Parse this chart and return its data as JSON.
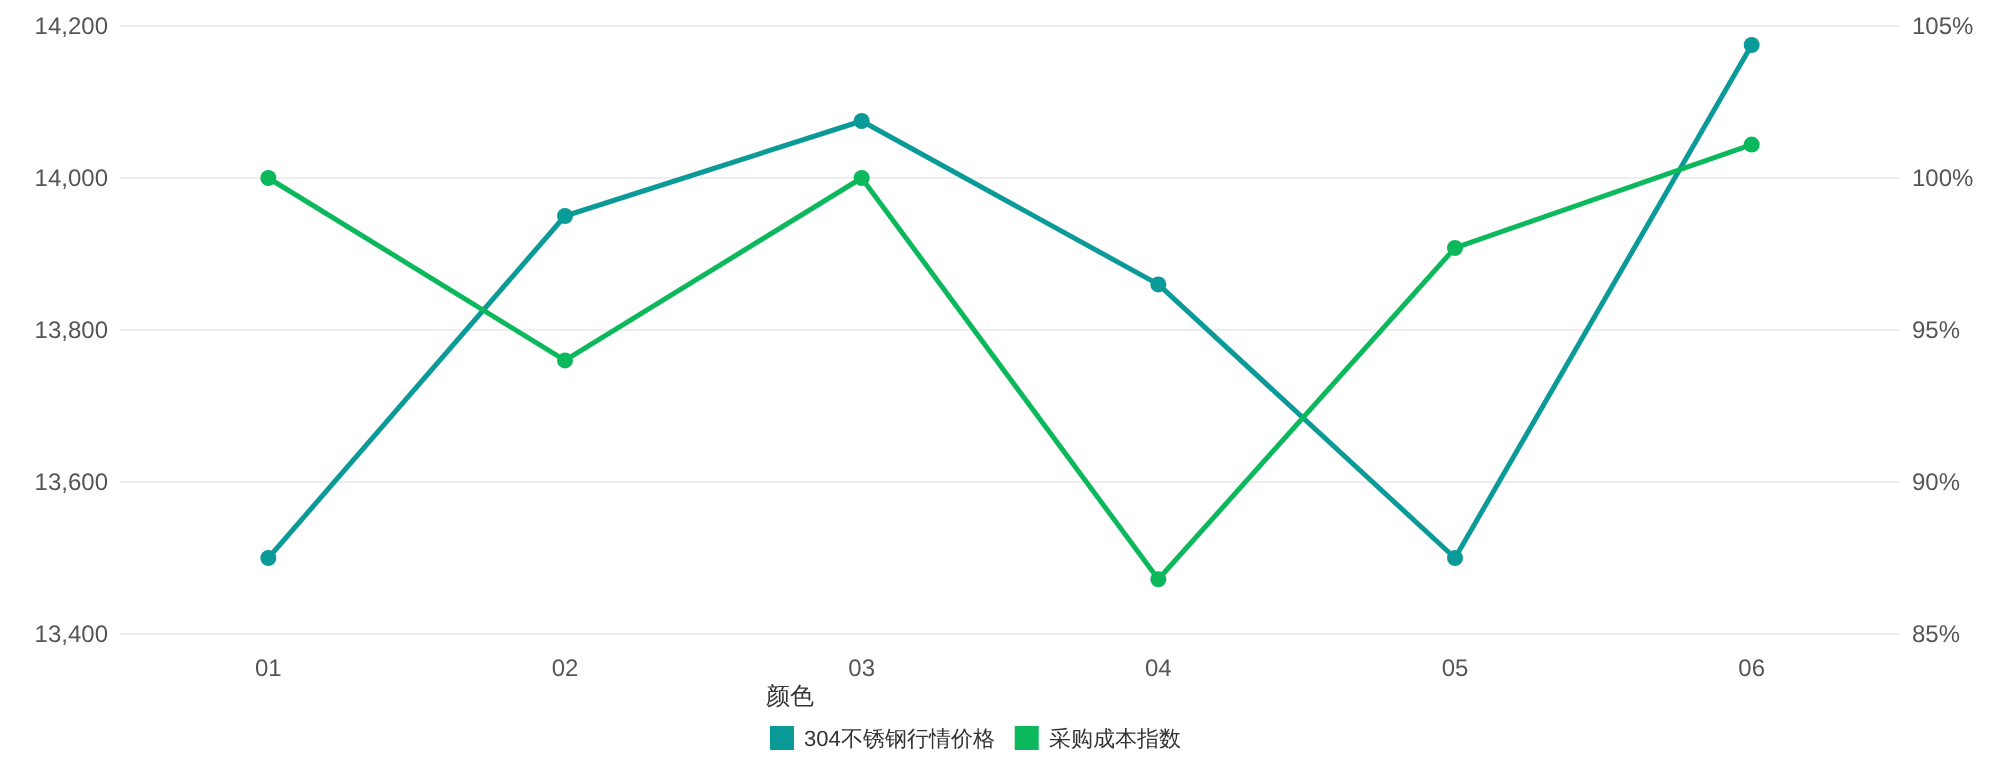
{
  "chart_data": {
    "type": "line",
    "categories": [
      "01",
      "02",
      "03",
      "04",
      "05",
      "06"
    ],
    "series": [
      {
        "name": "304不锈钢行情价格",
        "color": "#0a9a98",
        "values": [
          13500,
          13950,
          14075,
          13860,
          13500,
          14175
        ]
      },
      {
        "name": "采购成本指数",
        "color": "#0cb85c",
        "values": [
          100,
          94,
          100,
          86.8,
          97.7,
          101.1
        ],
        "axis": "y2"
      }
    ],
    "ylim": [
      13400,
      14200
    ],
    "yticks": [
      {
        "value": 13400,
        "label": "13,400"
      },
      {
        "value": 13600,
        "label": "13,600"
      },
      {
        "value": 13800,
        "label": "13,800"
      },
      {
        "value": 14000,
        "label": "14,000"
      },
      {
        "value": 14200,
        "label": "14,200"
      }
    ],
    "y2lim": [
      85,
      105
    ],
    "y2ticks": [
      {
        "value": 85,
        "label": "85%"
      },
      {
        "value": 90,
        "label": "90%"
      },
      {
        "value": 95,
        "label": "95%"
      },
      {
        "value": 100,
        "label": "100%"
      },
      {
        "value": 105,
        "label": "105%"
      }
    ],
    "legend_title": "颜色",
    "legend": "bottom",
    "grid": "y",
    "marker": "circle",
    "line_style": "solid"
  }
}
